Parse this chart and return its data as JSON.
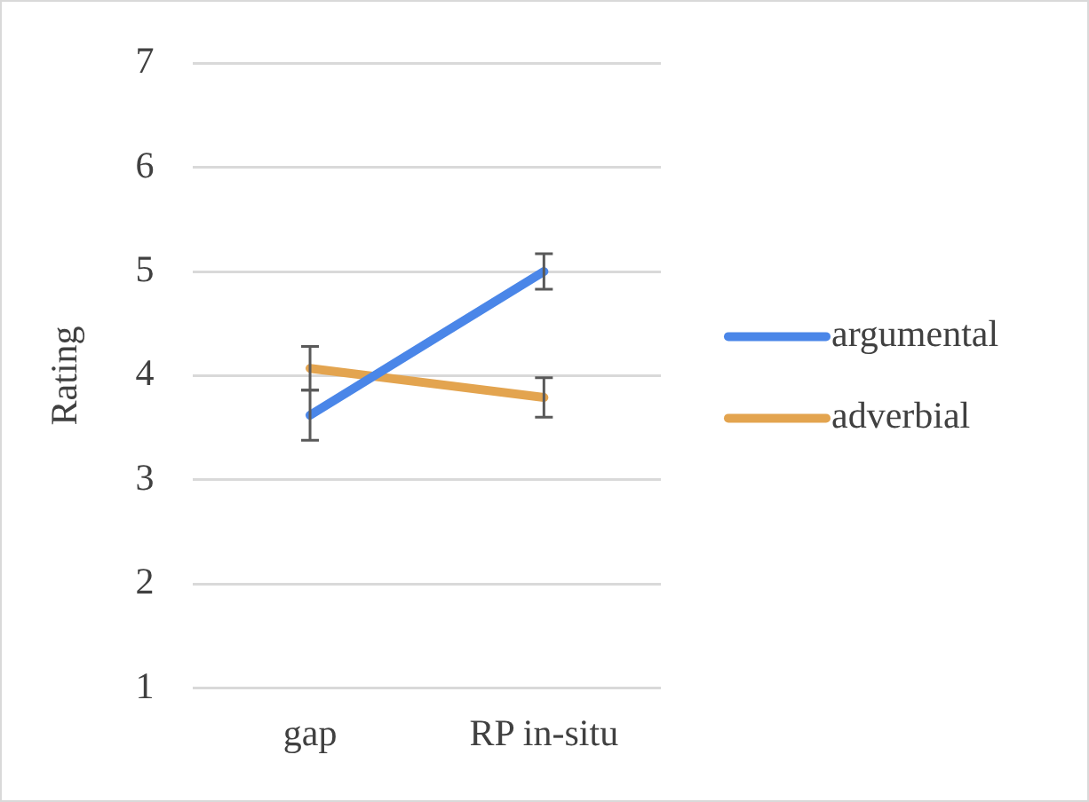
{
  "chart_data": {
    "type": "line",
    "ylabel": "Rating",
    "categories": [
      "gap",
      "RP in-situ"
    ],
    "series": [
      {
        "name": "argumental",
        "color": "#4a86e8",
        "values": [
          3.62,
          5.0
        ],
        "errors": [
          0.24,
          0.17
        ]
      },
      {
        "name": "adverbial",
        "color": "#e3a44f",
        "values": [
          4.07,
          3.79
        ],
        "errors": [
          0.21,
          0.19
        ]
      }
    ],
    "ylim": [
      1,
      7
    ],
    "yticks": [
      1,
      2,
      3,
      4,
      5,
      6,
      7
    ],
    "grid": "y",
    "legend": "right",
    "marker": "none",
    "line_style": "solid"
  }
}
